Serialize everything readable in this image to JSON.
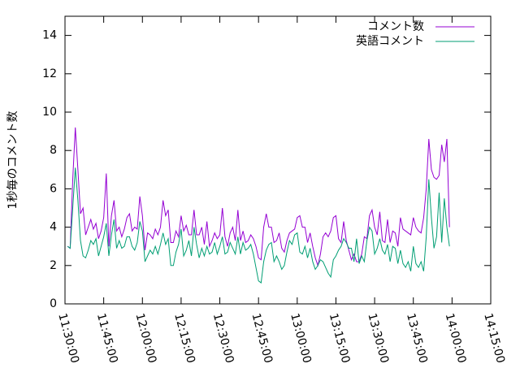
{
  "chart_data": {
    "type": "line",
    "y_label": "1秒毎のコメント数",
    "x": [
      "11:31:00",
      "11:32:00",
      "11:33:00",
      "11:34:00",
      "11:35:00",
      "11:36:00",
      "11:37:00",
      "11:38:00",
      "11:39:00",
      "11:40:00",
      "11:41:00",
      "11:42:00",
      "11:43:00",
      "11:44:00",
      "11:45:00",
      "11:46:00",
      "11:47:00",
      "11:48:00",
      "11:49:00",
      "11:50:00",
      "11:51:00",
      "11:52:00",
      "11:53:00",
      "11:54:00",
      "11:55:00",
      "11:56:00",
      "11:57:00",
      "11:58:00",
      "11:59:00",
      "12:00:00",
      "12:01:00",
      "12:02:00",
      "12:03:00",
      "12:04:00",
      "12:05:00",
      "12:06:00",
      "12:07:00",
      "12:08:00",
      "12:09:00",
      "12:10:00",
      "12:11:00",
      "12:12:00",
      "12:13:00",
      "12:14:00",
      "12:15:00",
      "12:16:00",
      "12:17:00",
      "12:18:00",
      "12:19:00",
      "12:20:00",
      "12:21:00",
      "12:22:00",
      "12:23:00",
      "12:24:00",
      "12:25:00",
      "12:26:00",
      "12:27:00",
      "12:28:00",
      "12:29:00",
      "12:30:00",
      "12:31:00",
      "12:32:00",
      "12:33:00",
      "12:34:00",
      "12:35:00",
      "12:36:00",
      "12:37:00",
      "12:38:00",
      "12:39:00",
      "12:40:00",
      "12:41:00",
      "12:42:00",
      "12:43:00",
      "12:44:00",
      "12:45:00",
      "12:46:00",
      "12:47:00",
      "12:48:00",
      "12:49:00",
      "12:50:00",
      "12:51:00",
      "12:52:00",
      "12:53:00",
      "12:54:00",
      "12:55:00",
      "12:56:00",
      "12:57:00",
      "12:58:00",
      "12:59:00",
      "13:00:00",
      "13:01:00",
      "13:02:00",
      "13:03:00",
      "13:04:00",
      "13:05:00",
      "13:06:00",
      "13:07:00",
      "13:08:00",
      "13:09:00",
      "13:10:00",
      "13:11:00",
      "13:12:00",
      "13:13:00",
      "13:14:00",
      "13:15:00",
      "13:16:00",
      "13:17:00",
      "13:18:00",
      "13:19:00",
      "13:20:00",
      "13:21:00",
      "13:22:00",
      "13:23:00",
      "13:24:00",
      "13:25:00",
      "13:26:00",
      "13:27:00",
      "13:28:00",
      "13:29:00",
      "13:30:00",
      "13:31:00",
      "13:32:00",
      "13:33:00",
      "13:34:00",
      "13:35:00",
      "13:36:00",
      "13:37:00",
      "13:38:00",
      "13:39:00",
      "13:40:00",
      "13:41:00",
      "13:42:00",
      "13:43:00",
      "13:44:00",
      "13:45:00",
      "13:46:00",
      "13:47:00",
      "13:48:00",
      "13:49:00",
      "13:50:00",
      "13:51:00",
      "13:52:00",
      "13:53:00",
      "13:54:00",
      "13:55:00",
      "13:56:00",
      "13:57:00",
      "13:58:00",
      "13:59:00"
    ],
    "series": [
      {
        "name": "コメント数",
        "color": "#9400d3",
        "values": [
          3.0,
          2.9,
          6.5,
          9.2,
          7.0,
          4.7,
          5.0,
          3.6,
          4.0,
          4.4,
          3.9,
          4.2,
          3.4,
          3.8,
          4.5,
          6.8,
          3.0,
          4.6,
          5.4,
          3.8,
          4.0,
          3.5,
          3.9,
          4.5,
          4.7,
          3.8,
          4.0,
          3.9,
          5.6,
          4.6,
          2.8,
          3.7,
          3.6,
          3.4,
          3.9,
          3.6,
          4.0,
          5.4,
          4.6,
          4.9,
          3.2,
          3.2,
          3.8,
          3.5,
          4.6,
          3.8,
          4.1,
          3.6,
          3.6,
          4.9,
          3.6,
          3.6,
          4.0,
          3.1,
          4.3,
          3.0,
          3.3,
          3.7,
          3.4,
          3.6,
          5.0,
          3.5,
          3.0,
          3.7,
          4.0,
          3.3,
          4.9,
          3.3,
          3.8,
          3.2,
          3.3,
          3.6,
          3.4,
          3.0,
          2.4,
          2.3,
          4.0,
          4.7,
          4.0,
          4.0,
          3.2,
          3.3,
          3.7,
          2.9,
          2.7,
          3.3,
          3.7,
          3.8,
          3.9,
          4.5,
          4.6,
          4.0,
          4.0,
          3.2,
          3.7,
          3.0,
          2.4,
          2.0,
          2.6,
          3.5,
          3.7,
          3.5,
          3.8,
          4.5,
          4.6,
          3.4,
          3.2,
          4.3,
          3.3,
          2.8,
          2.3,
          2.6,
          2.2,
          2.2,
          2.6,
          3.5,
          3.4,
          4.6,
          4.9,
          4.0,
          3.6,
          4.8,
          3.3,
          3.2,
          4.4,
          3.2,
          3.8,
          3.7,
          3.0,
          4.5,
          3.9,
          3.8,
          3.7,
          3.6,
          4.5,
          4.0,
          3.8,
          3.7,
          4.5,
          6.0,
          8.6,
          7.0,
          6.6,
          6.5,
          6.7,
          8.3,
          7.4,
          8.6,
          4.0
        ]
      },
      {
        "name": "英語コメント",
        "color": "#009e73",
        "values": [
          3.0,
          2.9,
          5.0,
          7.1,
          5.4,
          3.3,
          2.5,
          2.4,
          2.8,
          3.3,
          3.1,
          3.4,
          2.5,
          3.0,
          3.5,
          4.2,
          2.5,
          3.6,
          4.4,
          2.9,
          3.3,
          2.9,
          3.0,
          3.5,
          3.5,
          3.0,
          2.8,
          3.2,
          4.3,
          3.8,
          2.2,
          2.5,
          2.8,
          2.6,
          3.0,
          2.6,
          3.1,
          3.7,
          3.1,
          3.4,
          2.0,
          2.0,
          2.7,
          3.1,
          3.9,
          2.5,
          2.8,
          3.3,
          2.5,
          4.0,
          3.1,
          2.4,
          2.9,
          2.5,
          3.0,
          2.6,
          2.7,
          3.2,
          2.6,
          3.0,
          3.5,
          2.6,
          2.7,
          3.2,
          2.9,
          2.6,
          3.5,
          2.6,
          3.2,
          2.8,
          2.9,
          3.1,
          2.6,
          1.9,
          1.2,
          1.1,
          2.2,
          2.8,
          3.1,
          3.2,
          2.2,
          2.5,
          2.2,
          1.8,
          2.0,
          2.7,
          3.3,
          3.1,
          3.6,
          3.7,
          2.7,
          2.6,
          3.0,
          2.4,
          2.9,
          2.2,
          1.8,
          2.0,
          2.3,
          2.2,
          1.9,
          1.6,
          1.4,
          2.3,
          2.5,
          2.8,
          3.0,
          3.4,
          3.2,
          2.9,
          2.9,
          2.2,
          3.4,
          2.1,
          2.5,
          2.2,
          3.3,
          4.0,
          3.8,
          2.6,
          2.9,
          3.4,
          2.8,
          2.6,
          3.1,
          2.2,
          3.0,
          2.9,
          2.1,
          2.8,
          2.1,
          1.9,
          2.2,
          1.7,
          3.0,
          2.1,
          1.9,
          2.2,
          1.7,
          3.5,
          6.5,
          4.5,
          2.9,
          3.5,
          5.8,
          3.2,
          5.5,
          4.0,
          3.0
        ]
      }
    ],
    "xlim": [
      "11:30:00",
      "14:15:00"
    ],
    "xticks": [
      "11:30:00",
      "11:45:00",
      "12:00:00",
      "12:15:00",
      "12:30:00",
      "12:45:00",
      "13:00:00",
      "13:15:00",
      "13:30:00",
      "13:45:00",
      "14:00:00",
      "14:15:00"
    ],
    "ylim": [
      0,
      15
    ],
    "yticks": [
      0,
      2,
      4,
      6,
      8,
      10,
      12,
      14
    ],
    "legend": "top-right"
  }
}
